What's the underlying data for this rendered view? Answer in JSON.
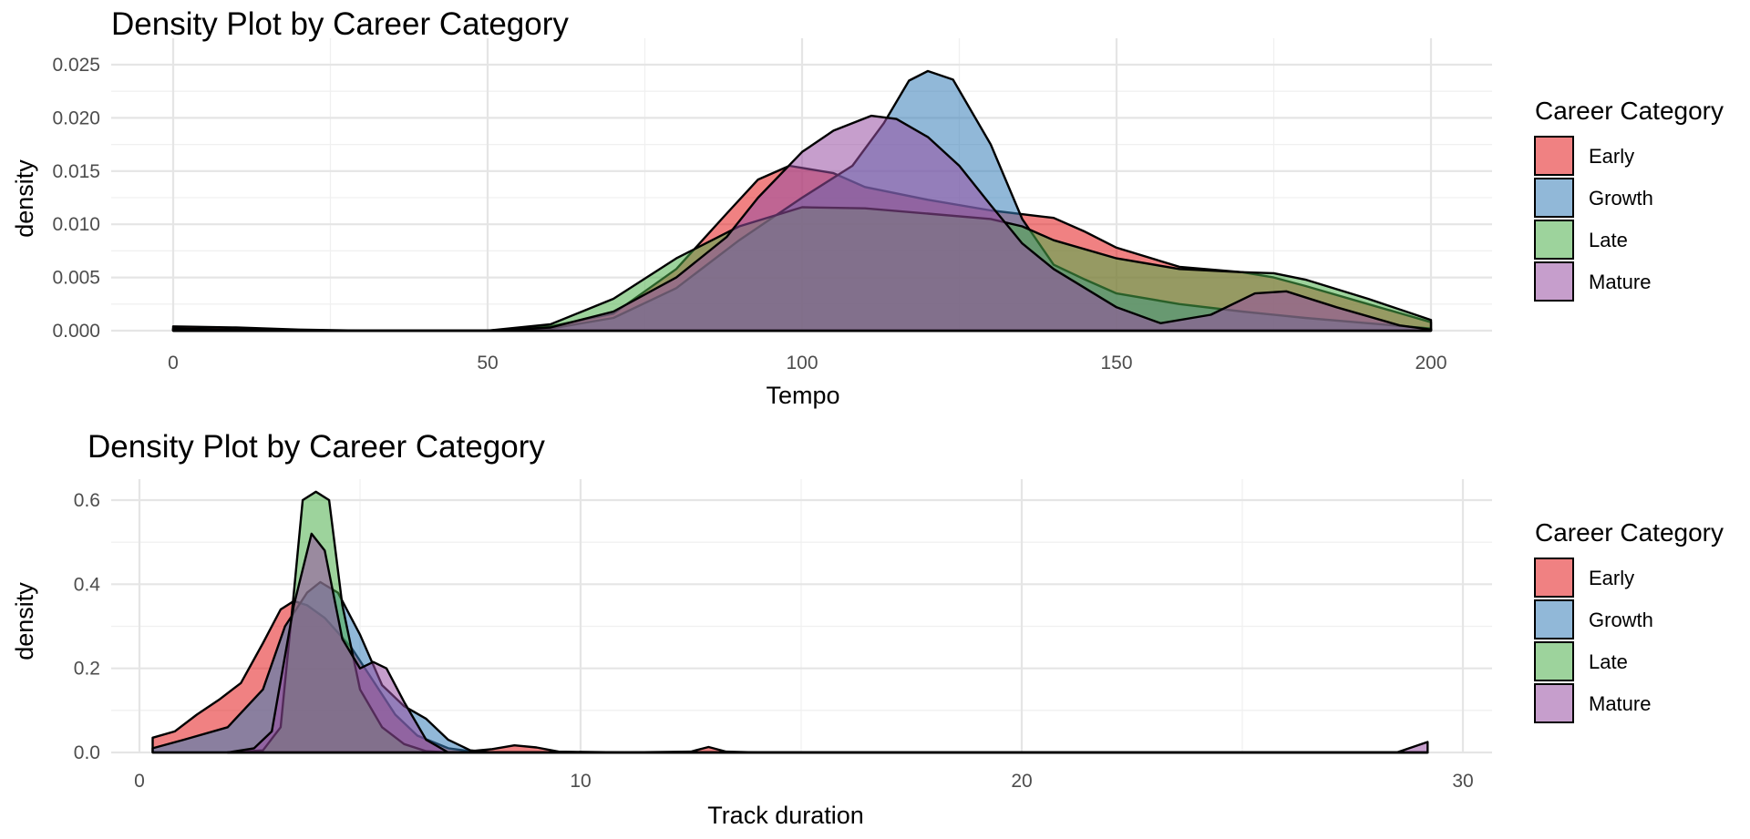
{
  "chart_data": [
    {
      "type": "area",
      "subtype": "density",
      "title": "Density Plot by Career Category",
      "xlabel": "Tempo",
      "ylabel": "density",
      "xlim": [
        0,
        200
      ],
      "ylim": [
        0,
        0.025
      ],
      "x_ticks": [
        "0",
        "50",
        "100",
        "150",
        "200"
      ],
      "y_ticks": [
        "0.000",
        "0.005",
        "0.010",
        "0.015",
        "0.020",
        "0.025"
      ],
      "x_tick_values": [
        0,
        50,
        100,
        150,
        200
      ],
      "y_tick_values": [
        0,
        0.005,
        0.01,
        0.015,
        0.02,
        0.025
      ],
      "grid": true,
      "legend": {
        "title": "Career Category",
        "position": "right"
      },
      "series": [
        {
          "name": "Early",
          "color": "#E41A1C",
          "points": [
            [
              0,
              0.0004
            ],
            [
              10,
              0.0003
            ],
            [
              20,
              0.0001
            ],
            [
              30,
              0
            ],
            [
              50,
              0
            ],
            [
              60,
              0.0004
            ],
            [
              70,
              0.0016
            ],
            [
              80,
              0.0058
            ],
            [
              88,
              0.011
            ],
            [
              93,
              0.0142
            ],
            [
              98,
              0.0155
            ],
            [
              105,
              0.0148
            ],
            [
              110,
              0.0135
            ],
            [
              120,
              0.0123
            ],
            [
              130,
              0.0113
            ],
            [
              140,
              0.0106
            ],
            [
              145,
              0.0093
            ],
            [
              150,
              0.0078
            ],
            [
              160,
              0.006
            ],
            [
              170,
              0.0055
            ],
            [
              175,
              0.005
            ],
            [
              180,
              0.0042
            ],
            [
              190,
              0.0025
            ],
            [
              200,
              0.0008
            ]
          ]
        },
        {
          "name": "Growth",
          "color": "#377EB8",
          "points": [
            [
              0,
              0.0001
            ],
            [
              20,
              0
            ],
            [
              50,
              0
            ],
            [
              60,
              0.0002
            ],
            [
              70,
              0.0012
            ],
            [
              80,
              0.004
            ],
            [
              90,
              0.0085
            ],
            [
              100,
              0.0125
            ],
            [
              108,
              0.0155
            ],
            [
              113,
              0.0195
            ],
            [
              117,
              0.0235
            ],
            [
              120,
              0.0244
            ],
            [
              124,
              0.0236
            ],
            [
              130,
              0.0175
            ],
            [
              135,
              0.0105
            ],
            [
              140,
              0.0062
            ],
            [
              145,
              0.0048
            ],
            [
              150,
              0.0035
            ],
            [
              160,
              0.0025
            ],
            [
              170,
              0.0018
            ],
            [
              180,
              0.0012
            ],
            [
              190,
              0.0007
            ],
            [
              200,
              0.0002
            ]
          ]
        },
        {
          "name": "Late",
          "color": "#4DAF4A",
          "points": [
            [
              0,
              0.0002
            ],
            [
              20,
              0
            ],
            [
              50,
              0
            ],
            [
              60,
              0.0006
            ],
            [
              70,
              0.003
            ],
            [
              80,
              0.0068
            ],
            [
              90,
              0.0098
            ],
            [
              100,
              0.0116
            ],
            [
              110,
              0.0115
            ],
            [
              120,
              0.011
            ],
            [
              130,
              0.0105
            ],
            [
              135,
              0.0098
            ],
            [
              140,
              0.0085
            ],
            [
              150,
              0.0068
            ],
            [
              160,
              0.0058
            ],
            [
              170,
              0.0055
            ],
            [
              175,
              0.0054
            ],
            [
              180,
              0.0048
            ],
            [
              190,
              0.003
            ],
            [
              200,
              0.001
            ]
          ]
        },
        {
          "name": "Mature",
          "color": "#984EA3",
          "points": [
            [
              0,
              0.0002
            ],
            [
              20,
              0
            ],
            [
              50,
              0
            ],
            [
              60,
              0.0003
            ],
            [
              70,
              0.0018
            ],
            [
              80,
              0.005
            ],
            [
              88,
              0.0088
            ],
            [
              93,
              0.0125
            ],
            [
              100,
              0.0168
            ],
            [
              105,
              0.0188
            ],
            [
              111,
              0.0202
            ],
            [
              115,
              0.0199
            ],
            [
              120,
              0.0182
            ],
            [
              125,
              0.0155
            ],
            [
              130,
              0.0118
            ],
            [
              135,
              0.0082
            ],
            [
              140,
              0.0058
            ],
            [
              150,
              0.0022
            ],
            [
              157,
              0.0007
            ],
            [
              165,
              0.0015
            ],
            [
              172,
              0.0035
            ],
            [
              177,
              0.0037
            ],
            [
              185,
              0.0022
            ],
            [
              195,
              0.0005
            ],
            [
              200,
              0.0001
            ]
          ]
        }
      ]
    },
    {
      "type": "area",
      "subtype": "density",
      "title": "Density Plot by Career Category",
      "xlabel": "Track duration",
      "ylabel": "density",
      "xlim": [
        0,
        30
      ],
      "ylim": [
        0,
        0.6
      ],
      "x_ticks": [
        "0",
        "10",
        "20",
        "30"
      ],
      "y_ticks": [
        "0.0",
        "0.2",
        "0.4",
        "0.6"
      ],
      "x_tick_values": [
        0,
        10,
        20,
        30
      ],
      "y_tick_values": [
        0,
        0.2,
        0.4,
        0.6
      ],
      "grid": true,
      "legend": {
        "title": "Career Category",
        "position": "right"
      },
      "series": [
        {
          "name": "Early",
          "color": "#E41A1C",
          "points": [
            [
              0.3,
              0.035
            ],
            [
              0.8,
              0.05
            ],
            [
              1.3,
              0.09
            ],
            [
              1.8,
              0.125
            ],
            [
              2.3,
              0.165
            ],
            [
              2.8,
              0.26
            ],
            [
              3.2,
              0.34
            ],
            [
              3.5,
              0.36
            ],
            [
              3.8,
              0.35
            ],
            [
              4.2,
              0.32
            ],
            [
              4.8,
              0.25
            ],
            [
              5.3,
              0.17
            ],
            [
              5.8,
              0.09
            ],
            [
              6.3,
              0.04
            ],
            [
              7,
              0.01
            ],
            [
              7.5,
              0.003
            ],
            [
              8,
              0.008
            ],
            [
              8.5,
              0.017
            ],
            [
              9,
              0.012
            ],
            [
              9.5,
              0.002
            ],
            [
              11,
              0
            ],
            [
              12.5,
              0.002
            ],
            [
              12.9,
              0.013
            ],
            [
              13.3,
              0.002
            ],
            [
              14,
              0
            ],
            [
              29.2,
              0
            ]
          ]
        },
        {
          "name": "Growth",
          "color": "#377EB8",
          "points": [
            [
              0.3,
              0.01
            ],
            [
              1,
              0.03
            ],
            [
              2,
              0.06
            ],
            [
              2.8,
              0.15
            ],
            [
              3.3,
              0.3
            ],
            [
              3.8,
              0.38
            ],
            [
              4.1,
              0.405
            ],
            [
              4.5,
              0.38
            ],
            [
              5,
              0.28
            ],
            [
              5.5,
              0.16
            ],
            [
              6,
              0.11
            ],
            [
              6.5,
              0.08
            ],
            [
              7,
              0.03
            ],
            [
              7.5,
              0.005
            ],
            [
              8,
              0
            ],
            [
              29.2,
              0
            ]
          ]
        },
        {
          "name": "Late",
          "color": "#4DAF4A",
          "points": [
            [
              2,
              0
            ],
            [
              2.8,
              0.005
            ],
            [
              3.2,
              0.06
            ],
            [
              3.5,
              0.38
            ],
            [
              3.7,
              0.6
            ],
            [
              4,
              0.62
            ],
            [
              4.3,
              0.6
            ],
            [
              4.6,
              0.35
            ],
            [
              5,
              0.15
            ],
            [
              5.5,
              0.06
            ],
            [
              6,
              0.02
            ],
            [
              6.5,
              0.003
            ],
            [
              7,
              0
            ],
            [
              29.2,
              0
            ]
          ]
        },
        {
          "name": "Mature",
          "color": "#984EA3",
          "points": [
            [
              2,
              0
            ],
            [
              2.6,
              0.01
            ],
            [
              3,
              0.05
            ],
            [
              3.5,
              0.35
            ],
            [
              3.9,
              0.52
            ],
            [
              4.2,
              0.48
            ],
            [
              4.6,
              0.27
            ],
            [
              5,
              0.2
            ],
            [
              5.3,
              0.215
            ],
            [
              5.6,
              0.2
            ],
            [
              6,
              0.12
            ],
            [
              6.5,
              0.03
            ],
            [
              7,
              0
            ],
            [
              28.5,
              0
            ],
            [
              29.2,
              0.025
            ]
          ]
        }
      ]
    }
  ]
}
